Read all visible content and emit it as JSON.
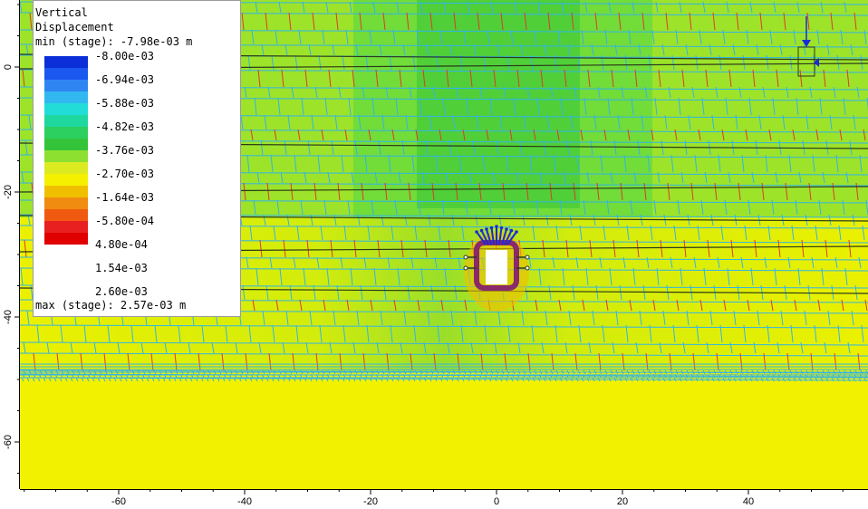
{
  "legend": {
    "title_line1": "Vertical",
    "title_line2": "Displacement",
    "min_text": "min (stage): -7.98e-03 m",
    "max_text": "max (stage): 2.57e-03 m",
    "labels": [
      "-8.00e-03",
      "-6.94e-03",
      "-5.88e-03",
      "-4.82e-03",
      "-3.76e-03",
      "-2.70e-03",
      "-1.64e-03",
      "-5.80e-04",
      "4.80e-04",
      "1.54e-03",
      "2.60e-03"
    ],
    "colors": [
      "#0a2fd8",
      "#1a58f0",
      "#2f86f2",
      "#32b8f0",
      "#22dcd8",
      "#1ed8a0",
      "#2bd060",
      "#34c43a",
      "#8ee030",
      "#dcea20",
      "#f5f000",
      "#f0c000",
      "#f08c10",
      "#f05a10",
      "#e82020",
      "#e00000"
    ]
  },
  "axes": {
    "x_ticks": [
      "-60",
      "-40",
      "-20",
      "0",
      "20",
      "40"
    ],
    "y_ticks": [
      "0",
      "-20",
      "-40",
      "-60"
    ]
  },
  "palette": {
    "yellow": "#f2f200",
    "green": "#96e030",
    "bright_green": "#5fd840",
    "cyan_lines": "#32b4e6",
    "red_joints": "#e03a28",
    "dark_layer": "#2a3a1a",
    "tunnel_core": "#ffffff",
    "support_blue": "#1a2ad8",
    "lining_purple": "#8a2a6a"
  }
}
